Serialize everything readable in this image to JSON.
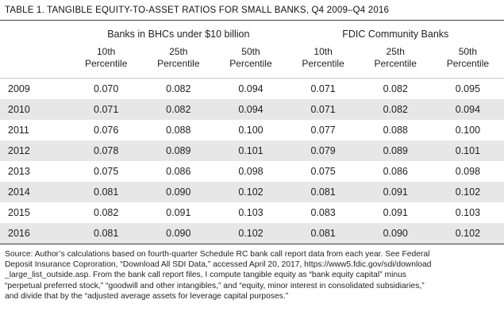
{
  "title": "TABLE 1. TANGIBLE EQUITY-TO-ASSET RATIOS FOR SMALL BANKS, Q4 2009–Q4 2016",
  "table": {
    "group_headers": [
      "Banks in BHCs under $10 billion",
      "FDIC Community Banks"
    ],
    "columns": [
      {
        "top": "10th",
        "bottom": "Percentile"
      },
      {
        "top": "25th",
        "bottom": "Percentile"
      },
      {
        "top": "50th",
        "bottom": "Percentile"
      },
      {
        "top": "10th",
        "bottom": "Percentile"
      },
      {
        "top": "25th",
        "bottom": "Percentile"
      },
      {
        "top": "50th",
        "bottom": "Percentile"
      }
    ],
    "rows": [
      {
        "year": "2009",
        "values": [
          "0.070",
          "0.082",
          "0.094",
          "0.071",
          "0.082",
          "0.095"
        ]
      },
      {
        "year": "2010",
        "values": [
          "0.071",
          "0.082",
          "0.094",
          "0.071",
          "0.082",
          "0.094"
        ]
      },
      {
        "year": "2011",
        "values": [
          "0.076",
          "0.088",
          "0.100",
          "0.077",
          "0.088",
          "0.100"
        ]
      },
      {
        "year": "2012",
        "values": [
          "0.078",
          "0.089",
          "0.101",
          "0.079",
          "0.089",
          "0.101"
        ]
      },
      {
        "year": "2013",
        "values": [
          "0.075",
          "0.086",
          "0.098",
          "0.075",
          "0.086",
          "0.098"
        ]
      },
      {
        "year": "2014",
        "values": [
          "0.081",
          "0.090",
          "0.102",
          "0.081",
          "0.091",
          "0.102"
        ]
      },
      {
        "year": "2015",
        "values": [
          "0.082",
          "0.091",
          "0.103",
          "0.083",
          "0.091",
          "0.103"
        ]
      },
      {
        "year": "2016",
        "values": [
          "0.081",
          "0.090",
          "0.102",
          "0.081",
          "0.090",
          "0.102"
        ]
      }
    ]
  },
  "source_lines": [
    "Source: Author’s calculations based on fourth-quarter Schedule RC bank call report data from each year. See Federal",
    "Deposit Insurance Coproration, “Download All SDI Data,” accessed April 20, 2017, https://www5.fdic.gov/sdi/download",
    "_large_list_outside.asp. From the bank call report files, I compute tangible equity as “bank equity capital” minus",
    "“perpetual preferred stock,” “goodwill and other intangibles,” and “equity, minor interest in consolidated subsidiaries,”",
    "and divide that by the “adjusted average assets for leverage capital purposes.”"
  ]
}
